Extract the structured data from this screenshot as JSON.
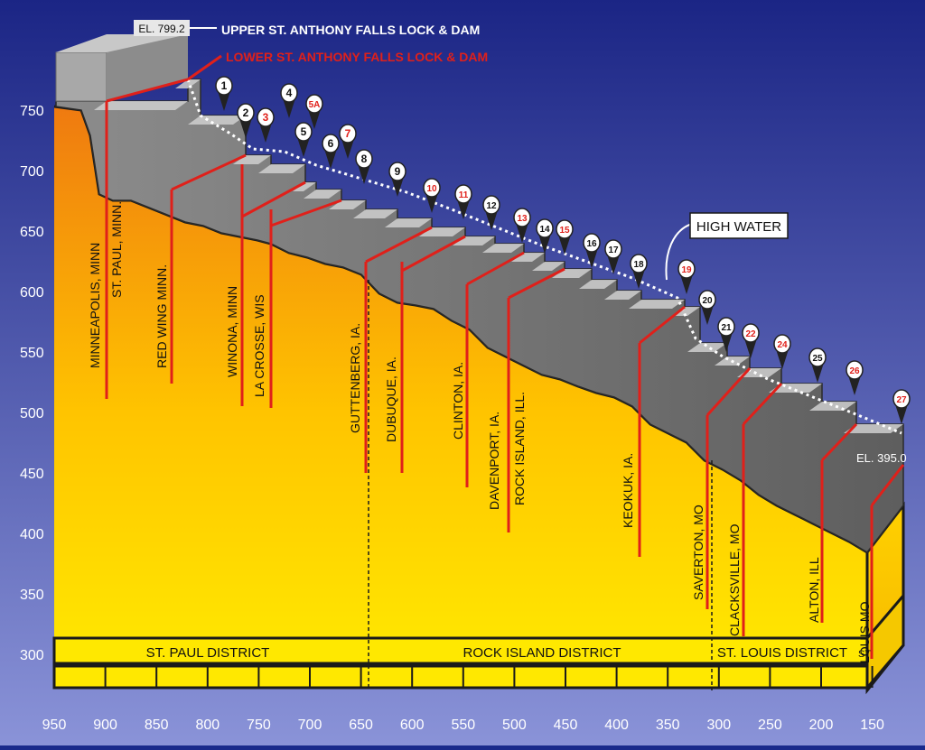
{
  "title": {
    "upper_elevation": "EL. 799.2",
    "upper_label": "UPPER ST. ANTHONY FALLS LOCK & DAM",
    "lower_label": "LOWER ST. ANTHONY FALLS LOCK & DAM",
    "lower_elevation": "EL. 395.0",
    "high_water": "HIGH WATER"
  },
  "colors": {
    "background_top": "#1b2585",
    "background_bottom": "#8a93d8",
    "fill_top": "#ef7a10",
    "fill_bottom": "#ffe800",
    "dam_red": "#e0201a",
    "steps_light": "#d0d0d0",
    "steps_dark": "#7a7a7a"
  },
  "y_axis": {
    "ticks": [
      "300",
      "350",
      "400",
      "450",
      "500",
      "550",
      "600",
      "650",
      "700",
      "750"
    ]
  },
  "x_axis": {
    "ticks": [
      "950",
      "900",
      "850",
      "800",
      "750",
      "700",
      "650",
      "600",
      "550",
      "500",
      "450",
      "400",
      "350",
      "300",
      "250",
      "200",
      "150"
    ]
  },
  "districts": [
    "ST. PAUL DISTRICT",
    "ROCK ISLAND  DISTRICT",
    "ST. LOUIS DISTRICT"
  ],
  "district_bar_st": "ST",
  "cities": [
    {
      "name": "MINNEAPOLIS, MINN"
    },
    {
      "name": "ST. PAUL, MINN."
    },
    {
      "name": "RED WING MINN."
    },
    {
      "name": "WINONA, MINN"
    },
    {
      "name": "LA CROSSE, WIS"
    },
    {
      "name": "GUTTENBERG, IA."
    },
    {
      "name": "DUBUQUE, IA."
    },
    {
      "name": "CLINTON, IA."
    },
    {
      "name": "DAVENPORT, IA."
    },
    {
      "name": "ROCK ISLAND, ILL."
    },
    {
      "name": "KEOKUK, IA."
    },
    {
      "name": "SAVERTON, MO"
    },
    {
      "name": "CLACKSVILLE, MO"
    },
    {
      "name": "ALTON, ILL"
    },
    {
      "name": "LOUIS MO"
    }
  ],
  "locks": [
    {
      "label": "1",
      "style": "white"
    },
    {
      "label": "2",
      "style": "white"
    },
    {
      "label": "3",
      "style": "red"
    },
    {
      "label": "4",
      "style": "white"
    },
    {
      "label": "5",
      "style": "white"
    },
    {
      "label": "5A",
      "style": "red"
    },
    {
      "label": "6",
      "style": "white"
    },
    {
      "label": "7",
      "style": "red"
    },
    {
      "label": "8",
      "style": "white"
    },
    {
      "label": "9",
      "style": "white"
    },
    {
      "label": "10",
      "style": "red"
    },
    {
      "label": "11",
      "style": "red"
    },
    {
      "label": "12",
      "style": "white"
    },
    {
      "label": "13",
      "style": "red"
    },
    {
      "label": "14",
      "style": "white"
    },
    {
      "label": "15",
      "style": "red"
    },
    {
      "label": "16",
      "style": "white"
    },
    {
      "label": "17",
      "style": "white"
    },
    {
      "label": "18",
      "style": "white"
    },
    {
      "label": "19",
      "style": "red"
    },
    {
      "label": "20",
      "style": "white"
    },
    {
      "label": "21",
      "style": "white"
    },
    {
      "label": "22",
      "style": "red"
    },
    {
      "label": "24",
      "style": "red"
    },
    {
      "label": "25",
      "style": "white"
    },
    {
      "label": "26",
      "style": "red"
    },
    {
      "label": "27",
      "style": "red"
    }
  ]
}
